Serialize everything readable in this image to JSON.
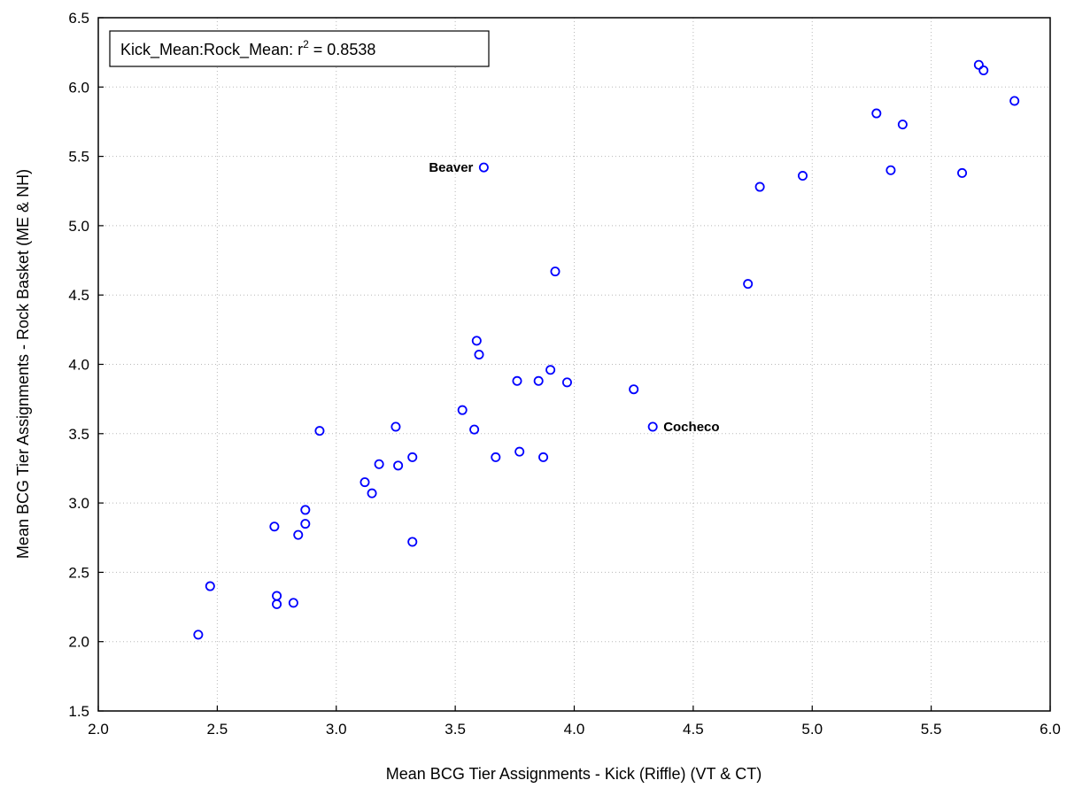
{
  "chart_data": {
    "type": "scatter",
    "xlabel": "Mean BCG Tier Assignments - Kick (Riffle) (VT & CT)",
    "ylabel": "Mean BCG Tier Assignments - Rock Basket (ME & NH)",
    "xlim": [
      2.0,
      6.0
    ],
    "ylim": [
      1.5,
      6.5
    ],
    "x_ticks": [
      "2.0",
      "2.5",
      "3.0",
      "3.5",
      "4.0",
      "4.5",
      "5.0",
      "5.5",
      "6.0"
    ],
    "y_ticks": [
      "1.5",
      "2.0",
      "2.5",
      "3.0",
      "3.5",
      "4.0",
      "4.5",
      "5.0",
      "5.5",
      "6.0",
      "6.5"
    ],
    "grid": true,
    "legend": {
      "position": "top-left",
      "text_prefix": "Kick_Mean:Rock_Mean:  r",
      "superscript": "2",
      "text_suffix": " = 0.8538"
    },
    "series": [
      {
        "marker_color": "#0000ff",
        "points": [
          {
            "x": 2.42,
            "y": 2.05
          },
          {
            "x": 2.47,
            "y": 2.4
          },
          {
            "x": 2.74,
            "y": 2.83
          },
          {
            "x": 2.75,
            "y": 2.33
          },
          {
            "x": 2.75,
            "y": 2.27
          },
          {
            "x": 2.82,
            "y": 2.28
          },
          {
            "x": 2.84,
            "y": 2.77
          },
          {
            "x": 2.87,
            "y": 2.95
          },
          {
            "x": 2.87,
            "y": 2.85
          },
          {
            "x": 2.93,
            "y": 3.52
          },
          {
            "x": 3.12,
            "y": 3.15
          },
          {
            "x": 3.15,
            "y": 3.07
          },
          {
            "x": 3.18,
            "y": 3.28
          },
          {
            "x": 3.25,
            "y": 3.55
          },
          {
            "x": 3.26,
            "y": 3.27
          },
          {
            "x": 3.32,
            "y": 3.33
          },
          {
            "x": 3.32,
            "y": 2.72
          },
          {
            "x": 3.53,
            "y": 3.67
          },
          {
            "x": 3.58,
            "y": 3.53
          },
          {
            "x": 3.59,
            "y": 4.17
          },
          {
            "x": 3.6,
            "y": 4.07
          },
          {
            "x": 3.62,
            "y": 5.42,
            "label": "Beaver"
          },
          {
            "x": 3.67,
            "y": 3.33
          },
          {
            "x": 3.76,
            "y": 3.88
          },
          {
            "x": 3.77,
            "y": 3.37
          },
          {
            "x": 3.85,
            "y": 3.88
          },
          {
            "x": 3.87,
            "y": 3.33
          },
          {
            "x": 3.9,
            "y": 3.96
          },
          {
            "x": 3.92,
            "y": 4.67
          },
          {
            "x": 3.97,
            "y": 3.87
          },
          {
            "x": 4.25,
            "y": 3.82
          },
          {
            "x": 4.33,
            "y": 3.55,
            "label": "Cocheco"
          },
          {
            "x": 4.73,
            "y": 4.58
          },
          {
            "x": 4.78,
            "y": 5.28
          },
          {
            "x": 4.96,
            "y": 5.36
          },
          {
            "x": 5.27,
            "y": 5.81
          },
          {
            "x": 5.33,
            "y": 5.4
          },
          {
            "x": 5.38,
            "y": 5.73
          },
          {
            "x": 5.63,
            "y": 5.38
          },
          {
            "x": 5.7,
            "y": 6.16
          },
          {
            "x": 5.72,
            "y": 6.12
          },
          {
            "x": 5.85,
            "y": 5.9
          }
        ]
      }
    ]
  }
}
